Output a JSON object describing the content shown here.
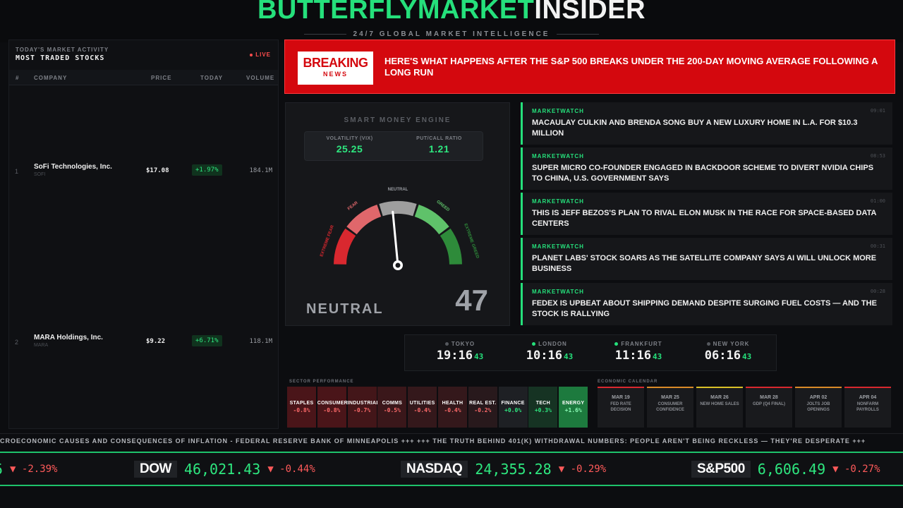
{
  "header": {
    "logo_green": "BUTTERFLYMARKET",
    "logo_white": "INSIDER",
    "tagline": "24/7 GLOBAL MARKET INTELLIGENCE"
  },
  "stocks": {
    "subtitle": "TODAY'S MARKET ACTIVITY",
    "title": "MOST TRADED STOCKS",
    "live": "LIVE",
    "columns": [
      "#",
      "COMPANY",
      "PRICE",
      "TODAY",
      "VOLUME"
    ],
    "rows": [
      {
        "rank": "1",
        "name": "SoFi Technologies, Inc.",
        "ticker": "SOFI",
        "price": "$17.08",
        "change": "+1.97%",
        "volume": "184.1M"
      },
      {
        "rank": "2",
        "name": "MARA Holdings, Inc.",
        "ticker": "MARA",
        "price": "$9.22",
        "change": "+6.71%",
        "volume": "118.1M"
      }
    ]
  },
  "breaking": {
    "badge_top": "BREAKING",
    "badge_bottom": "NEWS",
    "headline": "HERE'S WHAT HAPPENS AFTER THE S&P 500 BREAKS UNDER THE 200-DAY MOVING AVERAGE FOLLOWING A LONG RUN"
  },
  "engine": {
    "title": "SMART MONEY ENGINE",
    "vix_label": "VOLATILITY (VIX)",
    "vix_value": "25.25",
    "pc_label": "PUT/CALL RATIO",
    "pc_value": "1.21",
    "labels": {
      "extreme_fear": "EXTREME FEAR",
      "fear": "FEAR",
      "neutral": "NEUTRAL",
      "greed": "GREED",
      "extreme_greed": "EXTREME GREED"
    },
    "sentiment": "NEUTRAL",
    "score": "47",
    "score_value": 47,
    "colors": {
      "extreme_fear": "#d9282f",
      "fear": "#e0676b",
      "neutral": "#9e9e9e",
      "greed": "#5fc26a",
      "extreme_greed": "#2e8b3a"
    }
  },
  "news": [
    {
      "source": "MARKETWATCH",
      "time": "09:01",
      "headline": "MACAULAY CULKIN AND BRENDA SONG BUY A NEW LUXURY HOME IN L.A. FOR $10.3 MILLION"
    },
    {
      "source": "MARKETWATCH",
      "time": "08:53",
      "headline": "SUPER MICRO CO-FOUNDER ENGAGED IN BACKDOOR SCHEME TO DIVERT NVIDIA CHIPS TO CHINA, U.S. GOVERNMENT SAYS"
    },
    {
      "source": "MARKETWATCH",
      "time": "01:00",
      "headline": "THIS IS JEFF BEZOS'S PLAN TO RIVAL ELON MUSK IN THE RACE FOR SPACE-BASED DATA CENTERS"
    },
    {
      "source": "MARKETWATCH",
      "time": "00:31",
      "headline": "PLANET LABS' STOCK SOARS AS THE SATELLITE COMPANY SAYS AI WILL UNLOCK MORE BUSINESS"
    },
    {
      "source": "MARKETWATCH",
      "time": "00:28",
      "headline": "FEDEX IS UPBEAT ABOUT SHIPPING DEMAND DESPITE SURGING FUEL COSTS — AND THE STOCK IS RALLYING"
    }
  ],
  "clocks": [
    {
      "city": "TOKYO",
      "time": "19:16",
      "sec": "43",
      "status_color": "#55585e"
    },
    {
      "city": "LONDON",
      "time": "10:16",
      "sec": "43",
      "status_color": "#25e07b"
    },
    {
      "city": "FRANKFURT",
      "time": "11:16",
      "sec": "43",
      "status_color": "#25e07b"
    },
    {
      "city": "NEW YORK",
      "time": "06:16",
      "sec": "43",
      "status_color": "#55585e"
    }
  ],
  "sectors": {
    "title": "SECTOR PERFORMANCE",
    "items": [
      {
        "name": "STAPLES",
        "value": "-0.8%",
        "bg": "#4a1519",
        "fg": "#ff6b6b"
      },
      {
        "name": "CONSUMER",
        "value": "-0.8%",
        "bg": "#4a1519",
        "fg": "#ff6b6b"
      },
      {
        "name": "INDUSTRIAL",
        "value": "-0.7%",
        "bg": "#431619",
        "fg": "#ff6b6b"
      },
      {
        "name": "COMMS",
        "value": "-0.5%",
        "bg": "#3a171a",
        "fg": "#ff6b6b"
      },
      {
        "name": "UTILITIES",
        "value": "-0.4%",
        "bg": "#34181b",
        "fg": "#ff6b6b"
      },
      {
        "name": "HEALTH",
        "value": "-0.4%",
        "bg": "#34181b",
        "fg": "#ff6b6b"
      },
      {
        "name": "REAL EST.",
        "value": "-0.2%",
        "bg": "#28191c",
        "fg": "#ff6b6b"
      },
      {
        "name": "FINANCE",
        "value": "+0.0%",
        "bg": "#1e2024",
        "fg": "#2ee77f"
      },
      {
        "name": "TECH",
        "value": "+0.3%",
        "bg": "#163323",
        "fg": "#2ee77f"
      },
      {
        "name": "ENERGY",
        "value": "+1.6%",
        "bg": "#1d7a3e",
        "fg": "#8dffb8"
      }
    ]
  },
  "calendar": {
    "title": "ECONOMIC CALENDAR",
    "items": [
      {
        "date": "MAR 19",
        "event": "FED RATE DECISION",
        "accent": "#d9282f"
      },
      {
        "date": "MAR 25",
        "event": "CONSUMER CONFIDENCE",
        "accent": "#d98a28"
      },
      {
        "date": "MAR 26",
        "event": "NEW HOME SALES",
        "accent": "#d9c028"
      },
      {
        "date": "MAR 28",
        "event": "GDP (Q4 FINAL)",
        "accent": "#d9282f"
      },
      {
        "date": "APR 02",
        "event": "JOLTS JOB OPENINGS",
        "accent": "#d98a28"
      },
      {
        "date": "APR 04",
        "event": "NONFARM PAYROLLS",
        "accent": "#d9282f"
      }
    ]
  },
  "crawl": "CROECONOMIC CAUSES AND CONSEQUENCES OF INFLATION - FEDERAL RESERVE BANK OF MINNEAPOLIS +++ +++ THE TRUTH BEHIND 401(K) WITHDRAWAL NUMBERS: PEOPLE AREN'T BEING RECKLESS — THEY'RE DESPERATE +++",
  "ticker": [
    {
      "symbol": "",
      "value": "5",
      "change": "▼ -2.39%"
    },
    {
      "symbol": "DOW",
      "value": "46,021.43",
      "change": "▼ -0.44%"
    },
    {
      "symbol": "NASDAQ",
      "value": "24,355.28",
      "change": "▼ -0.29%"
    },
    {
      "symbol": "S&P500",
      "value": "6,606.49",
      "change": "▼ -0.27%"
    }
  ]
}
